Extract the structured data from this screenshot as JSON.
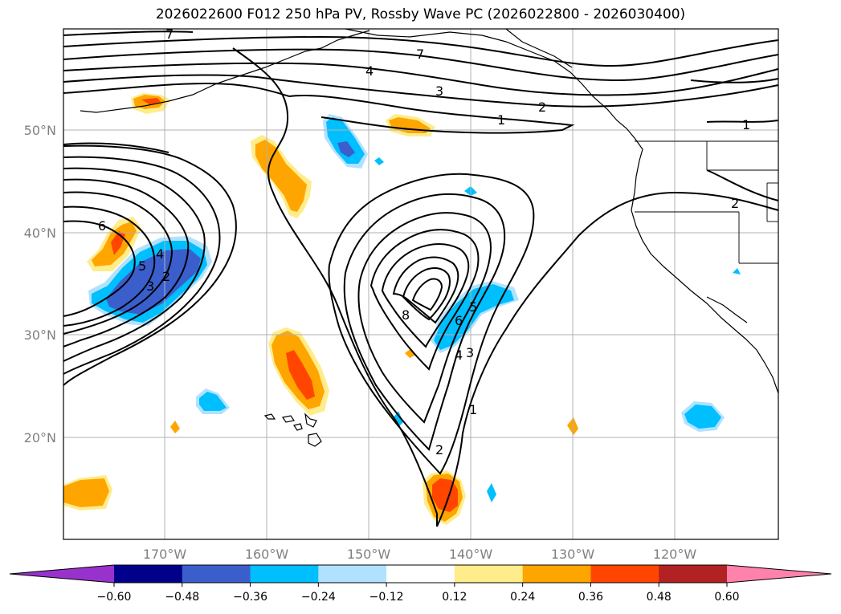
{
  "title": "2026022600 F012 250 hPa PV, Rossby Wave PC (2026022800 - 2026030400)",
  "lat_labels": [
    "50°N",
    "40°N",
    "30°N",
    "20°N"
  ],
  "lon_labels": [
    "170°W",
    "160°W",
    "150°W",
    "140°W",
    "130°W",
    "120°W"
  ],
  "colorbar": {
    "ticks": [
      "−0.60",
      "−0.48",
      "−0.36",
      "−0.24",
      "−0.12",
      "0.12",
      "0.24",
      "0.36",
      "0.48",
      "0.60"
    ],
    "colors": [
      "#9932cc",
      "#00008b",
      "#3a5fcd",
      "#00bfff",
      "#b0e2ff",
      "#ffffff",
      "#ffec8b",
      "#ffa500",
      "#ff4500",
      "#b22222",
      "#ff82ab"
    ]
  },
  "contour_labels": [
    "7",
    "4",
    "3",
    "2",
    "1",
    "6",
    "5",
    "4",
    "3",
    "2",
    "8",
    "6",
    "5",
    "4",
    "3",
    "1",
    "2",
    "1",
    "2",
    "7"
  ]
}
